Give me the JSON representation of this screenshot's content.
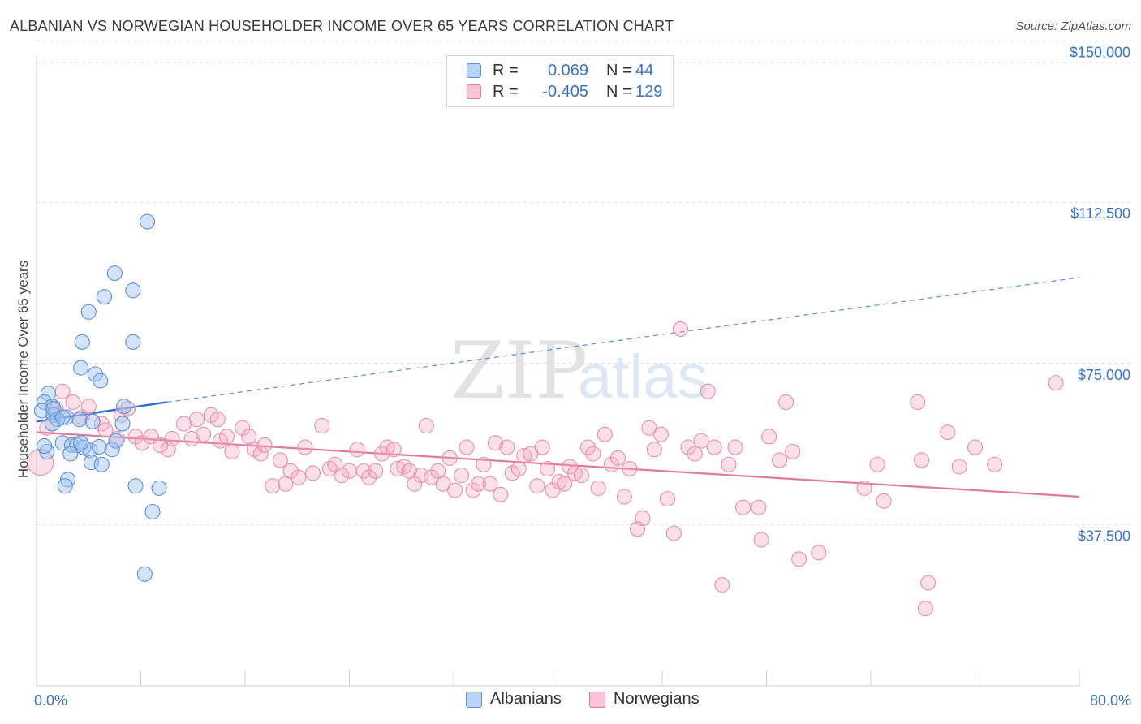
{
  "title": "ALBANIAN VS NORWEGIAN HOUSEHOLDER INCOME OVER 65 YEARS CORRELATION CHART",
  "source": "Source: ZipAtlas.com",
  "watermark": {
    "zip": "ZIP",
    "atlas": "atlas"
  },
  "legend": {
    "rows": [
      {
        "r_label": "R =",
        "r_value": "0.069",
        "n_label": "N =",
        "n_value": "44",
        "fill": "#b8d4f5",
        "stroke": "#5b8fd6"
      },
      {
        "r_label": "R =",
        "r_value": "-0.405",
        "n_label": "N =",
        "n_value": "129",
        "fill": "#f8c3d3",
        "stroke": "#e07a9d"
      }
    ]
  },
  "bottom_legend": [
    {
      "label": "Albanians",
      "fill": "#b8d4f5",
      "stroke": "#5b8fd6"
    },
    {
      "label": "Norwegians",
      "fill": "#f8c3d3",
      "stroke": "#e07a9d"
    }
  ],
  "chart_data": {
    "type": "scatter",
    "title": "ALBANIAN VS NORWEGIAN HOUSEHOLDER INCOME OVER 65 YEARS CORRELATION CHART",
    "xlabel": "",
    "ylabel": "Householder Income Over 65 years",
    "xlim": [
      0,
      80
    ],
    "ylim": [
      0,
      152000
    ],
    "x_tick_labels": [
      "0.0%",
      "80.0%"
    ],
    "y_ticks": [
      37500,
      75000,
      112500,
      150000
    ],
    "y_tick_labels": [
      "$37,500",
      "$75,000",
      "$112,500",
      "$150,000"
    ],
    "grid": "horizontal dashed",
    "legend_position": "top-center",
    "colors": {
      "albanians": "#5b8fd6",
      "norwegians": "#e07a9d",
      "axis_text": "#3a74c8"
    },
    "series": [
      {
        "name": "Albanians",
        "trend": {
          "x0": 0,
          "y0": 61500,
          "x1": 10,
          "y1": 66000,
          "extend_to_x": 80,
          "extend_y": 95000
        },
        "points": [
          [
            8.5,
            108000
          ],
          [
            6.0,
            96000
          ],
          [
            7.4,
            92000
          ],
          [
            5.2,
            90500
          ],
          [
            4.0,
            87000
          ],
          [
            7.4,
            80000
          ],
          [
            3.5,
            80000
          ],
          [
            3.4,
            74000
          ],
          [
            4.5,
            72500
          ],
          [
            4.9,
            71000
          ],
          [
            0.9,
            68000
          ],
          [
            0.6,
            66000
          ],
          [
            1.2,
            65000
          ],
          [
            6.7,
            65000
          ],
          [
            0.4,
            64000
          ],
          [
            1.3,
            63000
          ],
          [
            2.3,
            62500
          ],
          [
            1.6,
            62000
          ],
          [
            3.3,
            62000
          ],
          [
            4.3,
            61500
          ],
          [
            1.2,
            61000
          ],
          [
            6.6,
            61000
          ],
          [
            2.0,
            56500
          ],
          [
            2.7,
            56000
          ],
          [
            3.1,
            56000
          ],
          [
            3.6,
            55500
          ],
          [
            5.8,
            55000
          ],
          [
            4.1,
            54800
          ],
          [
            0.8,
            54500
          ],
          [
            2.6,
            54000
          ],
          [
            4.2,
            52000
          ],
          [
            5.0,
            51500
          ],
          [
            2.4,
            48000
          ],
          [
            2.2,
            46500
          ],
          [
            7.6,
            46500
          ],
          [
            9.4,
            46000
          ],
          [
            8.9,
            40500
          ],
          [
            8.3,
            26000
          ],
          [
            1.3,
            64500
          ],
          [
            3.4,
            56500
          ],
          [
            2.0,
            62500
          ],
          [
            6.1,
            57000
          ],
          [
            0.6,
            55800
          ],
          [
            4.8,
            55600
          ]
        ]
      },
      {
        "name": "Norwegians",
        "trend": {
          "x0": 0,
          "y0": 59000,
          "x1": 80,
          "y1": 44000
        },
        "points": [
          [
            0.3,
            52000
          ],
          [
            0.8,
            60000
          ],
          [
            1.5,
            64500
          ],
          [
            2.0,
            68500
          ],
          [
            2.8,
            66000
          ],
          [
            3.5,
            62500
          ],
          [
            4.0,
            65000
          ],
          [
            5.0,
            61000
          ],
          [
            5.3,
            59500
          ],
          [
            6.2,
            57500
          ],
          [
            6.5,
            63000
          ],
          [
            7.0,
            64500
          ],
          [
            7.6,
            58000
          ],
          [
            8.1,
            56500
          ],
          [
            8.8,
            58000
          ],
          [
            9.5,
            56000
          ],
          [
            10.1,
            55000
          ],
          [
            10.4,
            57500
          ],
          [
            11.3,
            61000
          ],
          [
            11.9,
            57500
          ],
          [
            12.3,
            62000
          ],
          [
            12.8,
            58500
          ],
          [
            13.4,
            63000
          ],
          [
            13.9,
            62000
          ],
          [
            14.1,
            57000
          ],
          [
            14.6,
            58000
          ],
          [
            15.0,
            54500
          ],
          [
            15.8,
            60000
          ],
          [
            16.3,
            58000
          ],
          [
            16.7,
            55000
          ],
          [
            17.2,
            54000
          ],
          [
            17.5,
            56000
          ],
          [
            18.1,
            46500
          ],
          [
            18.7,
            52500
          ],
          [
            19.1,
            47000
          ],
          [
            19.5,
            50000
          ],
          [
            20.1,
            48500
          ],
          [
            20.6,
            55500
          ],
          [
            21.2,
            49500
          ],
          [
            21.9,
            60500
          ],
          [
            22.5,
            50500
          ],
          [
            22.9,
            51500
          ],
          [
            23.4,
            49000
          ],
          [
            24.0,
            50000
          ],
          [
            24.6,
            55000
          ],
          [
            25.1,
            50000
          ],
          [
            25.5,
            48500
          ],
          [
            26.0,
            50000
          ],
          [
            26.5,
            54000
          ],
          [
            26.9,
            55500
          ],
          [
            27.4,
            55000
          ],
          [
            27.7,
            50500
          ],
          [
            28.2,
            51000
          ],
          [
            28.6,
            50000
          ],
          [
            29.0,
            47000
          ],
          [
            29.5,
            49000
          ],
          [
            29.9,
            60500
          ],
          [
            30.3,
            48500
          ],
          [
            30.8,
            50000
          ],
          [
            31.2,
            47000
          ],
          [
            31.7,
            53000
          ],
          [
            32.1,
            45500
          ],
          [
            32.6,
            49000
          ],
          [
            33.0,
            55500
          ],
          [
            33.5,
            45500
          ],
          [
            33.9,
            47000
          ],
          [
            34.3,
            51500
          ],
          [
            34.8,
            47000
          ],
          [
            35.2,
            56500
          ],
          [
            35.6,
            44500
          ],
          [
            36.1,
            55500
          ],
          [
            36.5,
            49500
          ],
          [
            37.0,
            50500
          ],
          [
            37.4,
            53500
          ],
          [
            37.9,
            54000
          ],
          [
            38.4,
            46500
          ],
          [
            38.8,
            55500
          ],
          [
            39.2,
            50500
          ],
          [
            39.6,
            45500
          ],
          [
            40.1,
            47500
          ],
          [
            40.5,
            47000
          ],
          [
            40.9,
            51000
          ],
          [
            41.3,
            49500
          ],
          [
            41.8,
            49000
          ],
          [
            42.3,
            55500
          ],
          [
            42.7,
            54000
          ],
          [
            43.1,
            46000
          ],
          [
            43.6,
            58500
          ],
          [
            44.1,
            51500
          ],
          [
            44.6,
            53000
          ],
          [
            45.1,
            44000
          ],
          [
            45.5,
            50500
          ],
          [
            46.1,
            36500
          ],
          [
            46.5,
            39000
          ],
          [
            47.0,
            60000
          ],
          [
            47.4,
            55000
          ],
          [
            47.9,
            58500
          ],
          [
            48.4,
            43500
          ],
          [
            48.9,
            35500
          ],
          [
            49.4,
            83000
          ],
          [
            50.0,
            55500
          ],
          [
            50.5,
            54000
          ],
          [
            51.0,
            57000
          ],
          [
            51.5,
            68500
          ],
          [
            52.0,
            55500
          ],
          [
            52.6,
            23500
          ],
          [
            53.1,
            51500
          ],
          [
            53.6,
            55500
          ],
          [
            54.2,
            41500
          ],
          [
            55.4,
            41500
          ],
          [
            55.6,
            34000
          ],
          [
            56.2,
            58000
          ],
          [
            57.0,
            52500
          ],
          [
            57.5,
            66000
          ],
          [
            58.0,
            54500
          ],
          [
            58.5,
            29500
          ],
          [
            60.0,
            31000
          ],
          [
            63.5,
            46000
          ],
          [
            64.5,
            51500
          ],
          [
            65.0,
            43000
          ],
          [
            67.6,
            66000
          ],
          [
            67.9,
            52500
          ],
          [
            68.4,
            24000
          ],
          [
            68.2,
            18000
          ],
          [
            69.9,
            59000
          ],
          [
            70.8,
            51000
          ],
          [
            72.0,
            55500
          ],
          [
            73.5,
            51500
          ],
          [
            78.2,
            70500
          ]
        ]
      }
    ]
  }
}
